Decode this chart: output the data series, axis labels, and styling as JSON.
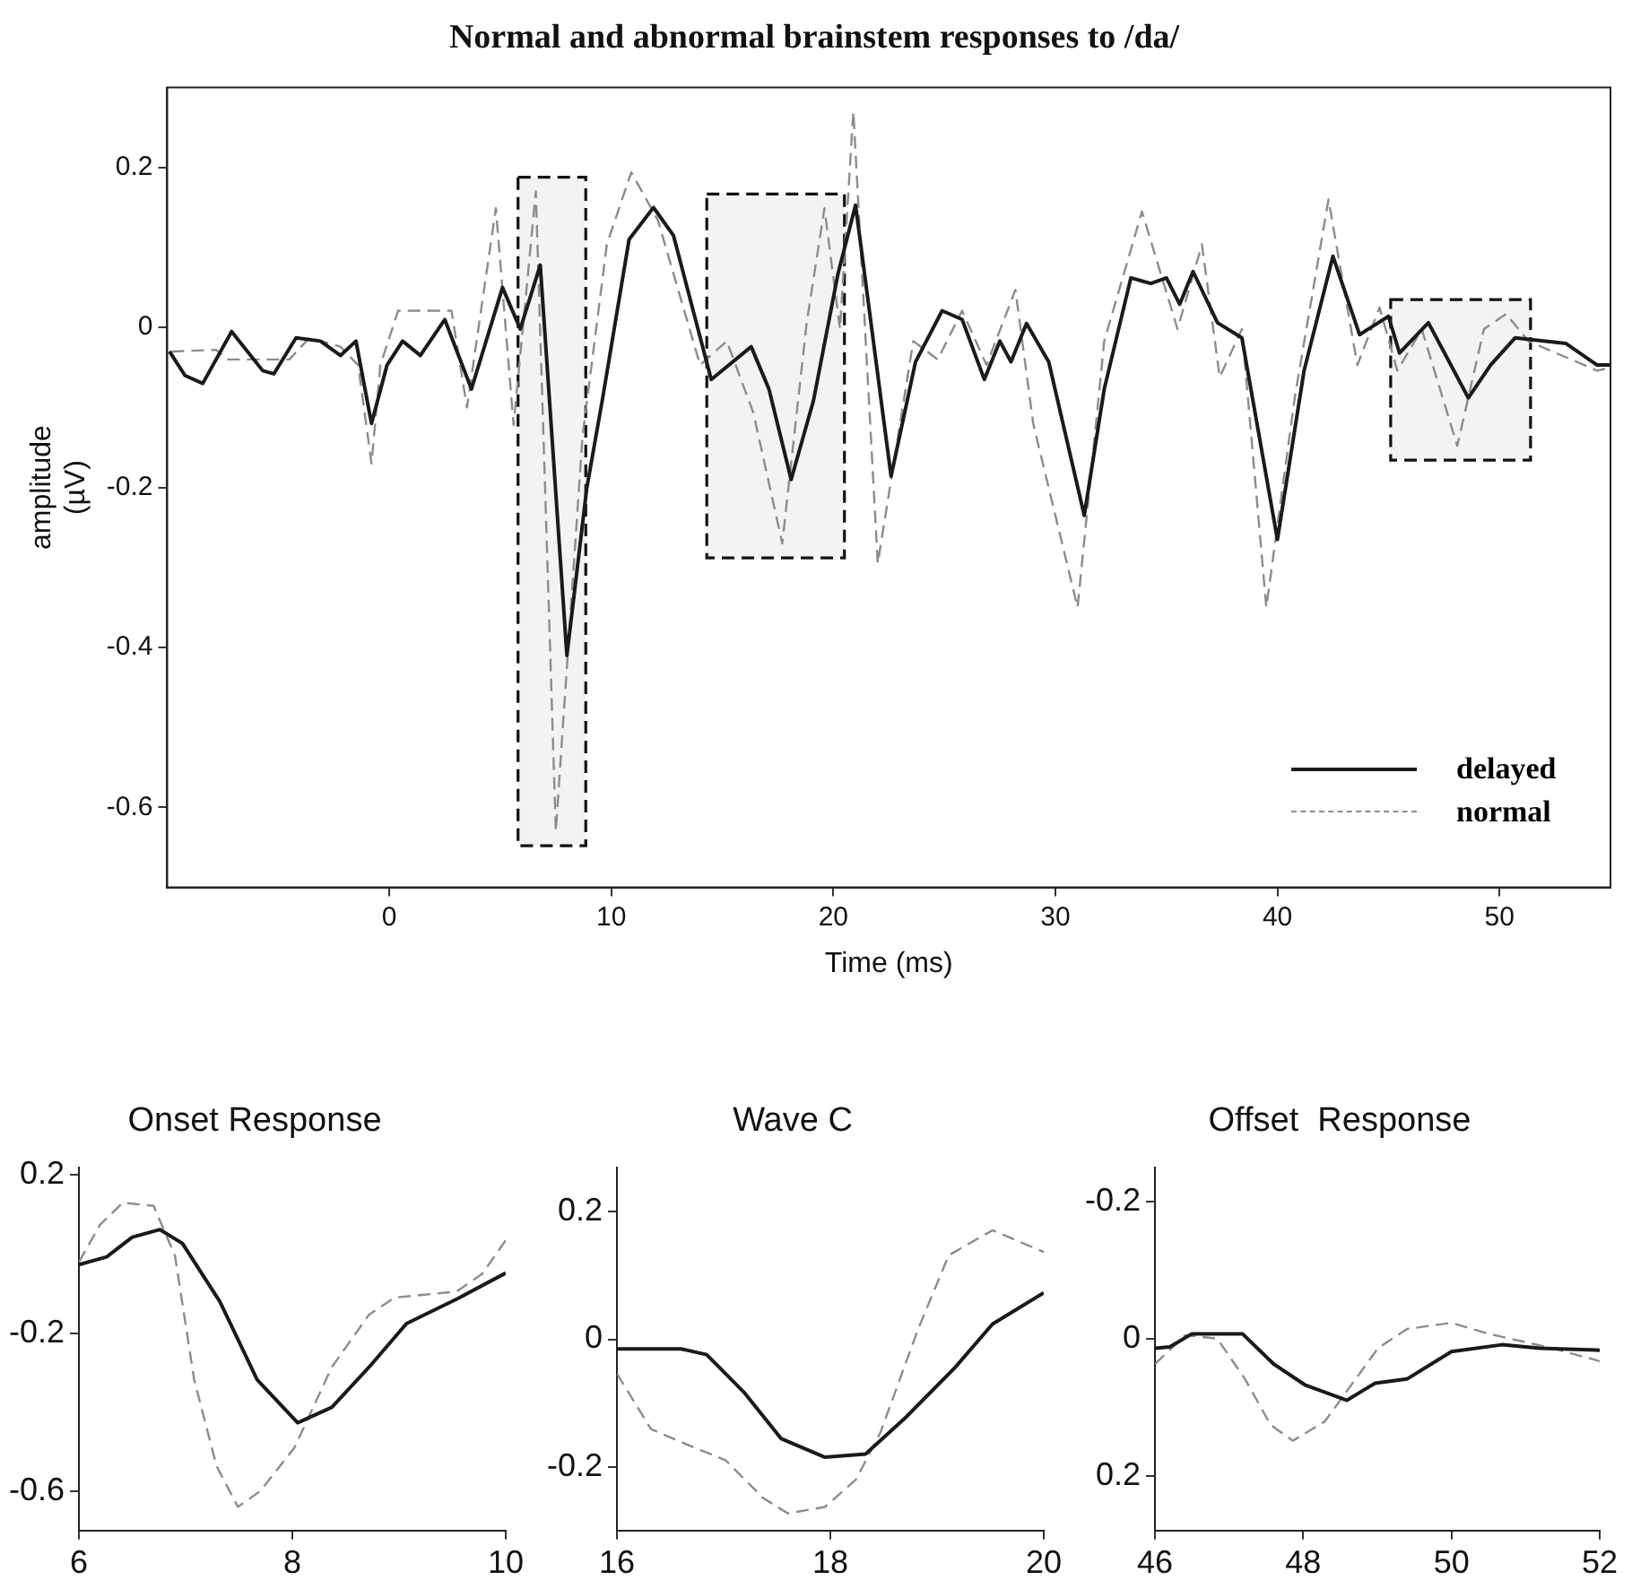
{
  "chart_data": [
    {
      "type": "line",
      "title": "Normal and abnormal brainstem responses to /da/",
      "xlabel": "Time (ms)",
      "ylabel": "amplitude (µV)",
      "xlim": [
        -10,
        55
      ],
      "ylim": [
        -0.7,
        0.3
      ],
      "xticks": [
        0,
        10,
        20,
        30,
        40,
        50
      ],
      "yticks": [
        -0.6,
        -0.4,
        -0.2,
        0,
        0.2
      ],
      "grid": false,
      "legend": "bottom right",
      "bands": [
        {
          "axis": "x",
          "from": 5.8,
          "to": 8.85
        },
        {
          "axis": "x",
          "from": 14.3,
          "to": 20.5
        },
        {
          "axis": "x",
          "from": 45.1,
          "to": 51.4
        }
      ],
      "series": [
        {
          "name": "delayed",
          "color": "#1a1a1a",
          "line_style": "solid",
          "x": [
            -9.9,
            -9.2,
            -8.4,
            -7.1,
            -5.7,
            -5.2,
            -4.2,
            -3.1,
            -2.2,
            -1.5,
            -0.8,
            -0.1,
            0.6,
            1.4,
            2.5,
            3.7,
            5.1,
            5.9,
            6.8,
            8.0,
            8.9,
            9.6,
            10.8,
            11.9,
            12.8,
            14.5,
            16.3,
            17.1,
            18.1,
            19.1,
            20.2,
            21.0,
            22.6,
            23.7,
            24.9,
            25.8,
            26.8,
            27.5,
            28.0,
            28.7,
            29.7,
            31.3,
            32.2,
            33.4,
            34.3,
            35.0,
            35.6,
            36.2,
            37.3,
            38.4,
            40.0,
            41.2,
            42.5,
            43.7,
            45.0,
            45.5,
            46.8,
            48.6,
            49.6,
            50.7,
            53.0,
            54.4,
            55
          ],
          "values": [
            -0.03,
            -0.06,
            -0.07,
            -0.005,
            -0.054,
            -0.058,
            -0.013,
            -0.017,
            -0.035,
            -0.017,
            -0.12,
            -0.047,
            -0.017,
            -0.035,
            0.01,
            -0.077,
            0.05,
            -0.002,
            0.078,
            -0.41,
            -0.2,
            -0.09,
            0.11,
            0.15,
            0.115,
            -0.065,
            -0.024,
            -0.077,
            -0.19,
            -0.092,
            0.066,
            0.153,
            -0.186,
            -0.043,
            0.021,
            0.01,
            -0.065,
            -0.017,
            -0.043,
            0.005,
            -0.043,
            -0.235,
            -0.077,
            0.062,
            0.055,
            0.062,
            0.029,
            0.07,
            0.006,
            -0.013,
            -0.265,
            -0.054,
            0.089,
            -0.009,
            0.014,
            -0.032,
            0.006,
            -0.088,
            -0.047,
            -0.013,
            -0.02,
            -0.047,
            -0.047
          ]
        },
        {
          "name": "normal",
          "color": "#8c8c8c",
          "line_style": "dashed",
          "x": [
            -9.8,
            -7.8,
            -7.3,
            -5.5,
            -4.5,
            -3.6,
            -2.2,
            -1.4,
            -0.8,
            -0.4,
            0.4,
            1.7,
            2.8,
            3.5,
            4.8,
            5.6,
            6.6,
            7.5,
            8.7,
            9.8,
            10.9,
            12.1,
            14.0,
            15.2,
            16.4,
            17.7,
            18.8,
            19.6,
            20.3,
            20.9,
            22.0,
            23.6,
            24.7,
            25.8,
            26.9,
            28.2,
            29.0,
            31.0,
            32.2,
            33.9,
            35.5,
            36.6,
            37.4,
            38.4,
            39.5,
            40.8,
            42.3,
            43.6,
            44.6,
            45.4,
            46.5,
            48.1,
            49.3,
            50.3,
            51.3,
            54.4,
            55
          ],
          "values": [
            -0.03,
            -0.028,
            -0.04,
            -0.04,
            -0.04,
            -0.013,
            -0.024,
            -0.047,
            -0.17,
            -0.047,
            0.021,
            0.021,
            0.021,
            -0.1,
            0.149,
            -0.122,
            0.17,
            -0.63,
            -0.137,
            0.104,
            0.194,
            0.134,
            -0.047,
            -0.017,
            -0.107,
            -0.27,
            0.006,
            0.149,
            -0.002,
            0.27,
            -0.295,
            -0.017,
            -0.04,
            0.021,
            -0.047,
            0.047,
            -0.12,
            -0.35,
            -0.017,
            0.145,
            -0.002,
            0.104,
            -0.062,
            -0.002,
            -0.35,
            -0.084,
            0.16,
            -0.047,
            0.025,
            -0.054,
            -0.002,
            -0.148,
            -0.002,
            0.017,
            -0.017,
            -0.054,
            -0.05
          ]
        }
      ]
    },
    {
      "type": "line",
      "title": "Onset Response",
      "xlim": [
        6,
        10
      ],
      "ylim": [
        -0.7,
        0.22
      ],
      "xticks": [
        6,
        8,
        10
      ],
      "yticks": [
        -0.6,
        -0.2,
        0.2
      ],
      "grid": false,
      "series": [
        {
          "color": "#1a1a1a",
          "line_style": "solid",
          "x": [
            6,
            6.26,
            6.5,
            6.76,
            6.97,
            7.32,
            7.67,
            8.05,
            8.37,
            8.72,
            9.07,
            9.54,
            10
          ],
          "values": [
            -0.027,
            -0.007,
            0.043,
            0.062,
            0.027,
            -0.12,
            -0.318,
            -0.427,
            -0.388,
            -0.286,
            -0.176,
            -0.114,
            -0.048
          ]
        },
        {
          "color": "#8c8c8c",
          "line_style": "dashed",
          "x": [
            6,
            6.2,
            6.41,
            6.7,
            6.9,
            7.08,
            7.29,
            7.49,
            7.7,
            8.02,
            8.37,
            8.72,
            8.96,
            9.54,
            9.78,
            10
          ],
          "values": [
            -0.02,
            0.075,
            0.13,
            0.122,
            -0.004,
            -0.318,
            -0.537,
            -0.64,
            -0.6,
            -0.49,
            -0.286,
            -0.153,
            -0.11,
            -0.095,
            -0.05,
            0.035
          ]
        }
      ]
    },
    {
      "type": "line",
      "title": "Wave C",
      "xlim": [
        16,
        20
      ],
      "ylim": [
        -0.3,
        0.27
      ],
      "xticks": [
        16,
        18,
        20
      ],
      "yticks": [
        -0.2,
        0,
        0.2
      ],
      "grid": false,
      "series": [
        {
          "color": "#1a1a1a",
          "line_style": "solid",
          "x": [
            16,
            16.6,
            16.84,
            17.19,
            17.54,
            17.95,
            18.33,
            18.71,
            19.17,
            19.52,
            20
          ],
          "values": [
            -0.015,
            -0.015,
            -0.024,
            -0.083,
            -0.156,
            -0.185,
            -0.18,
            -0.122,
            -0.044,
            0.024,
            0.073
          ]
        },
        {
          "color": "#8c8c8c",
          "line_style": "dashed",
          "x": [
            16,
            16.32,
            16.67,
            17.02,
            17.37,
            17.6,
            17.95,
            18.24,
            18.47,
            18.82,
            19.11,
            19.52,
            20
          ],
          "values": [
            -0.054,
            -0.141,
            -0.166,
            -0.19,
            -0.249,
            -0.273,
            -0.263,
            -0.22,
            -0.146,
            0.015,
            0.132,
            0.171,
            0.137
          ]
        }
      ]
    },
    {
      "type": "line",
      "title": "Offset  Response",
      "xlim": [
        46,
        52
      ],
      "ylim": [
        0.28,
        -0.25
      ],
      "xticks": [
        46,
        48,
        50,
        52
      ],
      "yticks": [
        -0.2,
        0,
        0.2
      ],
      "grid": false,
      "series": [
        {
          "color": "#1a1a1a",
          "line_style": "solid",
          "x": [
            46,
            46.2,
            46.5,
            47.18,
            47.6,
            48.03,
            48.59,
            48.97,
            49.4,
            50,
            50.68,
            51.19,
            52
          ],
          "values": [
            0.014,
            0.012,
            -0.007,
            -0.007,
            0.037,
            0.068,
            0.09,
            0.065,
            0.059,
            0.019,
            0.009,
            0.014,
            0.017
          ]
        },
        {
          "color": "#8c8c8c",
          "line_style": "dashed",
          "x": [
            46,
            46.41,
            46.84,
            47.22,
            47.56,
            47.86,
            48.29,
            49.01,
            49.4,
            50,
            50.5,
            51.36,
            52
          ],
          "values": [
            0.037,
            -0.005,
            0,
            0.06,
            0.126,
            0.149,
            0.121,
            0.014,
            -0.014,
            -0.023,
            -0.007,
            0.014,
            0.033
          ]
        }
      ]
    }
  ]
}
